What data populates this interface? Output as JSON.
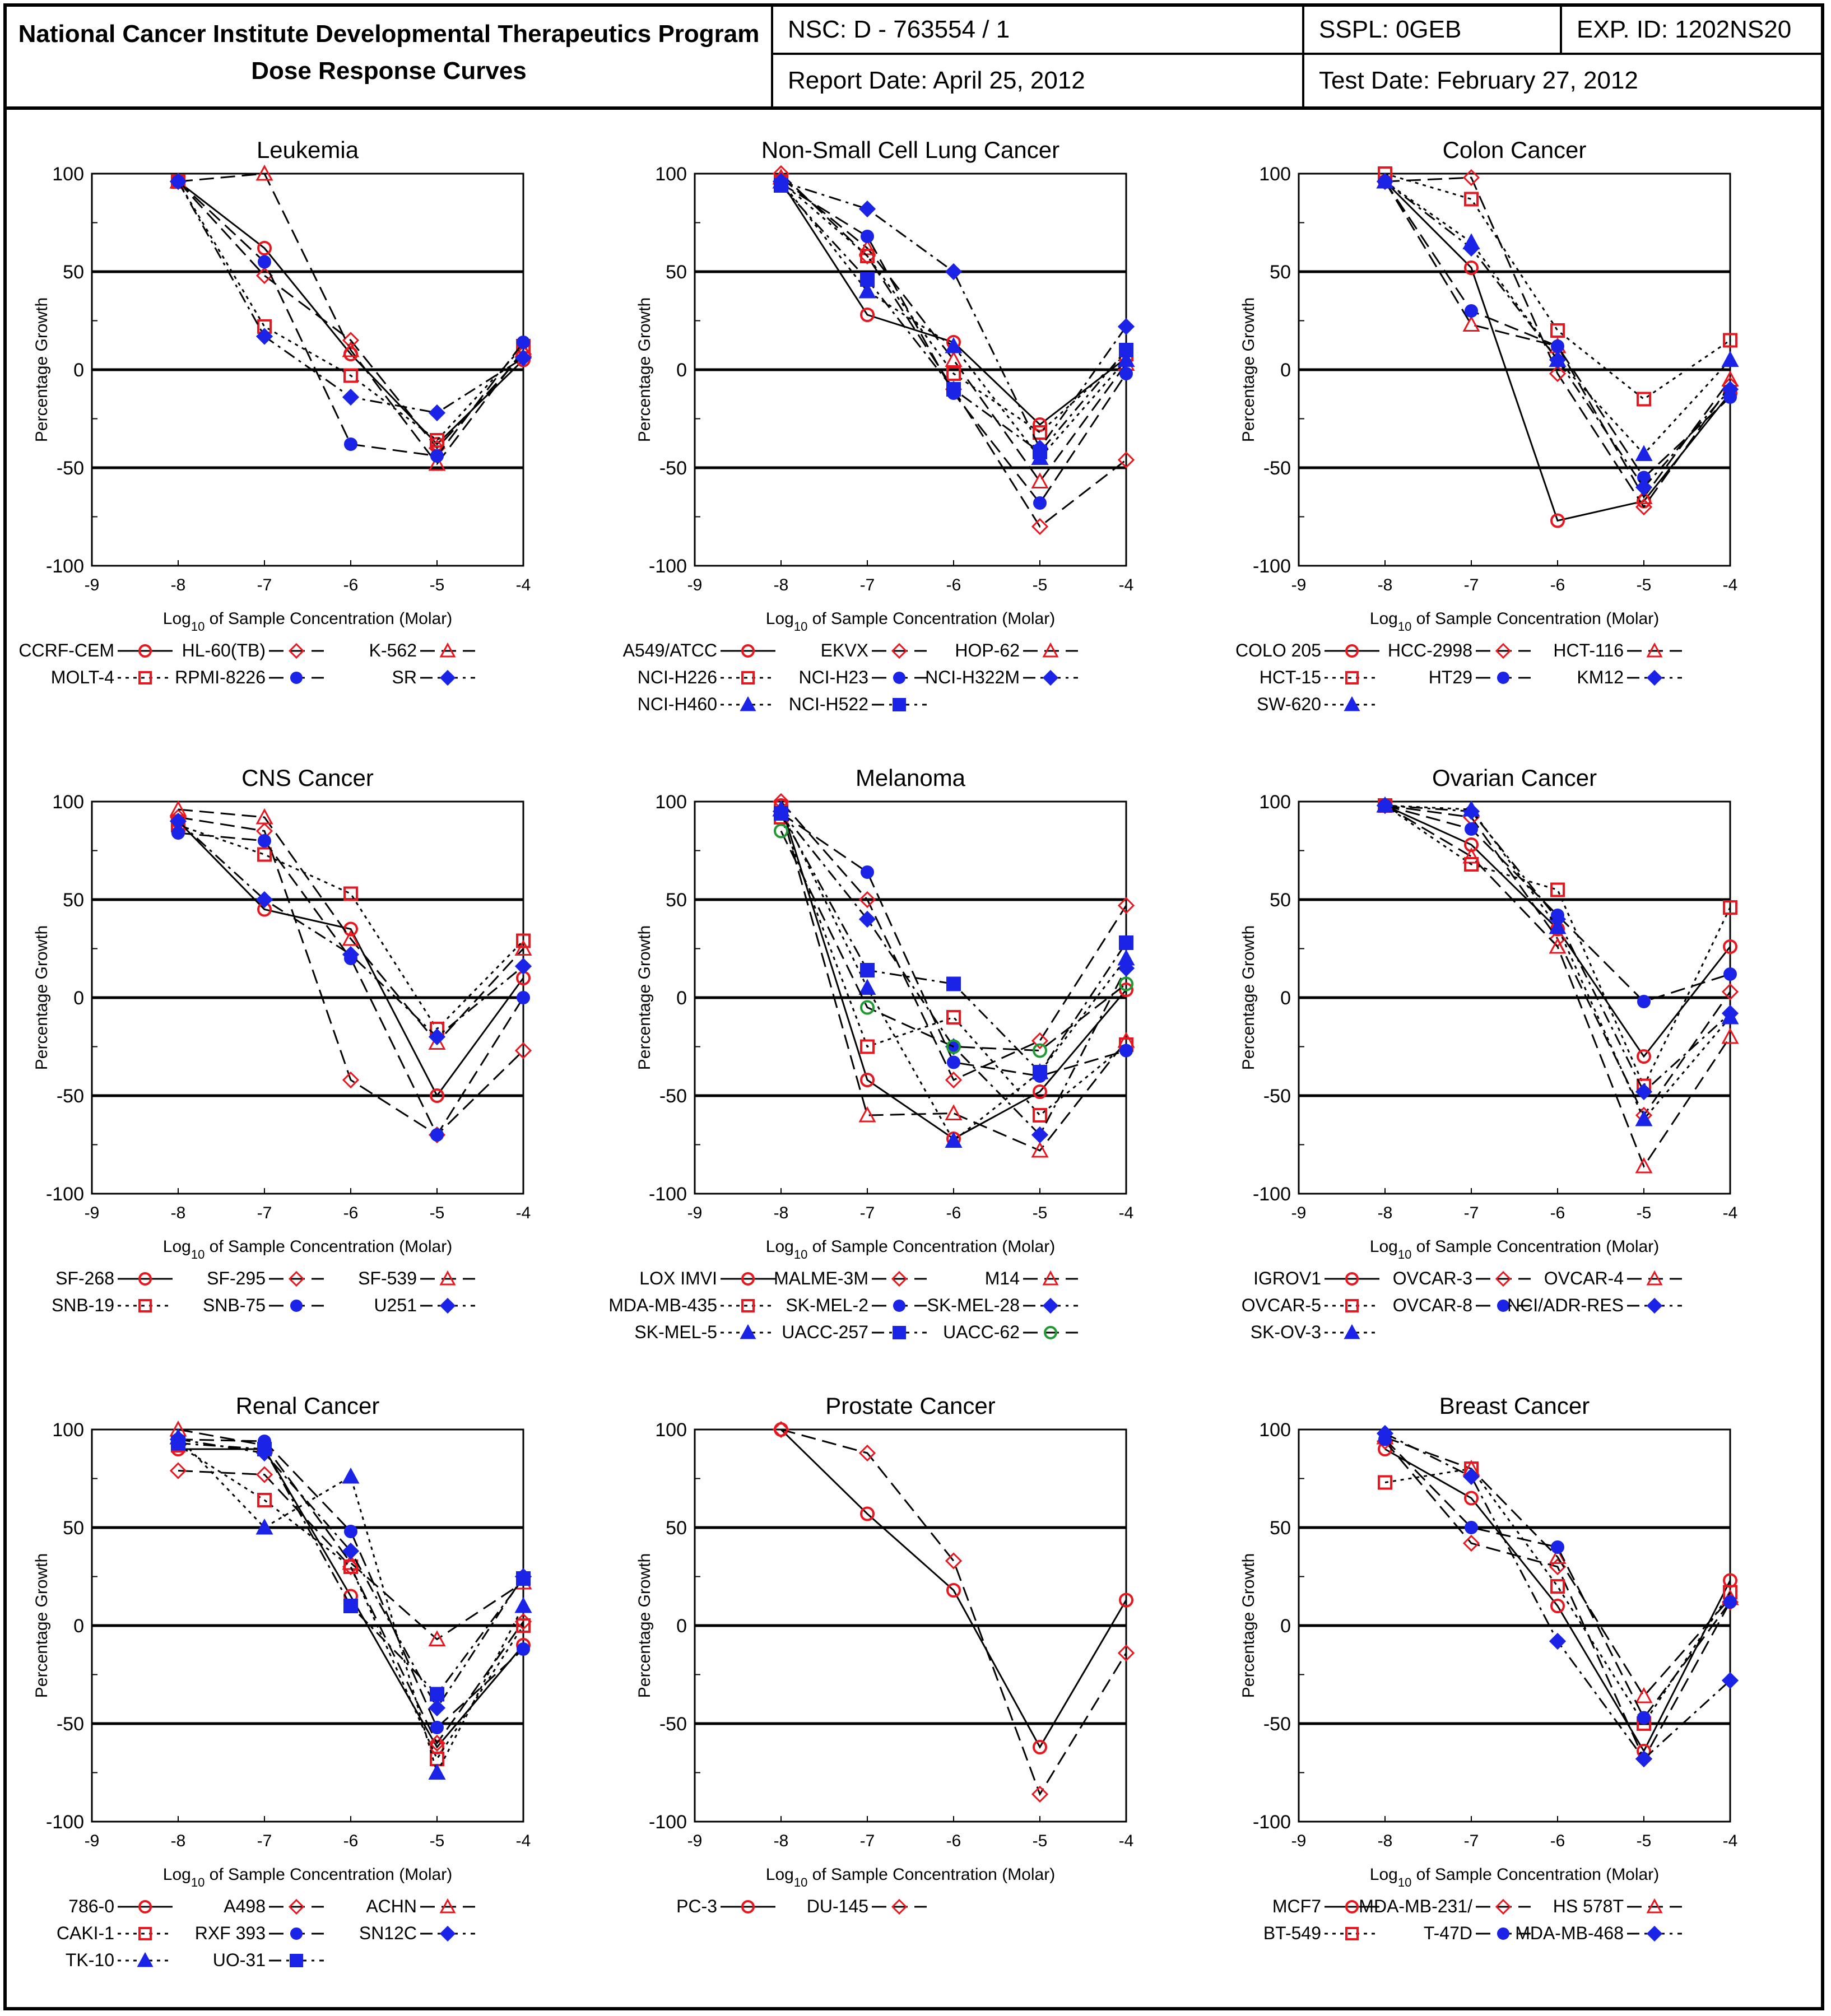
{
  "header": {
    "title_line1": "National Cancer Institute Developmental Therapeutics Program",
    "title_line2": "Dose Response Curves",
    "nsc": "NSC: D - 763554 / 1",
    "sspl": "SSPL: 0GEB",
    "exp_id": "EXP. ID: 1202NS20",
    "report_date": "Report Date: April 25, 2012",
    "test_date": "Test Date: February 27, 2012"
  },
  "axes": {
    "ylabel": "Percentage Growth",
    "xlabel_prefix": "Log",
    "xlabel_sub": "10",
    "xlabel_suffix": " of Sample Concentration (Molar)",
    "xticks": [
      -9,
      -8,
      -7,
      -6,
      -5,
      -4
    ],
    "yticks": [
      -100,
      -50,
      0,
      50,
      100
    ],
    "xlim": [
      -9,
      -4
    ],
    "ylim": [
      -100,
      100
    ]
  },
  "colors": {
    "red": "#e8161e",
    "blue": "#1b24e6",
    "green": "#1f9a33",
    "black": "#000000"
  },
  "chart_data": [
    {
      "type": "line",
      "title": "Leukemia",
      "x": [
        -8,
        -7,
        -6,
        -5,
        -4
      ],
      "series": [
        {
          "name": "CCRF-CEM",
          "marker": "circle",
          "color": "red",
          "dash": "solid",
          "values": [
            96,
            62,
            8,
            -38,
            5
          ]
        },
        {
          "name": "HL-60(TB)",
          "marker": "diamond",
          "color": "red",
          "dash": "dashed",
          "values": [
            96,
            48,
            15,
            -40,
            8
          ]
        },
        {
          "name": "K-562",
          "marker": "triangle",
          "color": "red",
          "dash": "dashed",
          "values": [
            96,
            100,
            10,
            -48,
            10
          ]
        },
        {
          "name": "MOLT-4",
          "marker": "square",
          "color": "red",
          "dash": "dotted",
          "values": [
            96,
            22,
            -3,
            -36,
            12
          ]
        },
        {
          "name": "RPMI-8226",
          "marker": "circle",
          "color": "blue",
          "dash": "dashed",
          "values": [
            96,
            55,
            -38,
            -44,
            14
          ]
        },
        {
          "name": "SR",
          "marker": "diamond",
          "color": "blue",
          "dash": "dashdot",
          "values": [
            96,
            17,
            -14,
            -22,
            6
          ]
        }
      ]
    },
    {
      "type": "line",
      "title": "Non-Small Cell Lung Cancer",
      "x": [
        -8,
        -7,
        -6,
        -5,
        -4
      ],
      "series": [
        {
          "name": "A549/ATCC",
          "marker": "circle",
          "color": "red",
          "dash": "solid",
          "values": [
            96,
            28,
            14,
            -28,
            6
          ]
        },
        {
          "name": "EKVX",
          "marker": "diamond",
          "color": "red",
          "dash": "dashed",
          "values": [
            100,
            58,
            -10,
            -80,
            -46
          ]
        },
        {
          "name": "HOP-62",
          "marker": "triangle",
          "color": "red",
          "dash": "dashed",
          "values": [
            98,
            62,
            5,
            -57,
            3
          ]
        },
        {
          "name": "NCI-H226",
          "marker": "square",
          "color": "red",
          "dash": "dotted",
          "values": [
            96,
            58,
            -2,
            -32,
            8
          ]
        },
        {
          "name": "NCI-H23",
          "marker": "circle",
          "color": "blue",
          "dash": "dashed",
          "values": [
            95,
            68,
            -12,
            -68,
            -2
          ]
        },
        {
          "name": "NCI-H322M",
          "marker": "diamond",
          "color": "blue",
          "dash": "dashdot",
          "values": [
            96,
            82,
            50,
            -40,
            22
          ]
        },
        {
          "name": "NCI-H460",
          "marker": "triangle",
          "color": "blue",
          "dash": "dotted",
          "values": [
            96,
            40,
            12,
            -45,
            5
          ]
        },
        {
          "name": "NCI-H522",
          "marker": "square",
          "color": "blue",
          "dash": "dashdot",
          "values": [
            94,
            46,
            -10,
            -42,
            10
          ]
        }
      ]
    },
    {
      "type": "line",
      "title": "Colon Cancer",
      "x": [
        -8,
        -7,
        -6,
        -5,
        -4
      ],
      "series": [
        {
          "name": "COLO 205",
          "marker": "circle",
          "color": "red",
          "dash": "solid",
          "values": [
            96,
            52,
            -77,
            -67,
            -12
          ]
        },
        {
          "name": "HCC-2998",
          "marker": "diamond",
          "color": "red",
          "dash": "dashed",
          "values": [
            96,
            98,
            -2,
            -70,
            -8
          ]
        },
        {
          "name": "HCT-116",
          "marker": "triangle",
          "color": "red",
          "dash": "dashed",
          "values": [
            96,
            23,
            12,
            -65,
            -5
          ]
        },
        {
          "name": "HCT-15",
          "marker": "square",
          "color": "red",
          "dash": "dotted",
          "values": [
            100,
            87,
            20,
            -15,
            15
          ]
        },
        {
          "name": "HT29",
          "marker": "circle",
          "color": "blue",
          "dash": "dashed",
          "values": [
            96,
            30,
            12,
            -55,
            -14
          ]
        },
        {
          "name": "KM12",
          "marker": "diamond",
          "color": "blue",
          "dash": "dashdot",
          "values": [
            96,
            62,
            5,
            -60,
            -10
          ]
        },
        {
          "name": "SW-620",
          "marker": "triangle",
          "color": "blue",
          "dash": "dotted",
          "values": [
            96,
            65,
            5,
            -43,
            5
          ]
        }
      ]
    },
    {
      "type": "line",
      "title": "CNS Cancer",
      "x": [
        -8,
        -7,
        -6,
        -5,
        -4
      ],
      "series": [
        {
          "name": "SF-268",
          "marker": "circle",
          "color": "red",
          "dash": "solid",
          "values": [
            90,
            45,
            35,
            -50,
            10
          ]
        },
        {
          "name": "SF-295",
          "marker": "diamond",
          "color": "red",
          "dash": "dashed",
          "values": [
            92,
            85,
            -42,
            -70,
            -27
          ]
        },
        {
          "name": "SF-539",
          "marker": "triangle",
          "color": "red",
          "dash": "dashed",
          "values": [
            96,
            92,
            30,
            -23,
            25
          ]
        },
        {
          "name": "SNB-19",
          "marker": "square",
          "color": "red",
          "dash": "dotted",
          "values": [
            88,
            73,
            53,
            -16,
            29
          ]
        },
        {
          "name": "SNB-75",
          "marker": "circle",
          "color": "blue",
          "dash": "dashed",
          "values": [
            84,
            80,
            20,
            -70,
            0
          ]
        },
        {
          "name": "U251",
          "marker": "diamond",
          "color": "blue",
          "dash": "dashdot",
          "values": [
            90,
            50,
            22,
            -20,
            16
          ]
        }
      ]
    },
    {
      "type": "line",
      "title": "Melanoma",
      "x": [
        -8,
        -7,
        -6,
        -5,
        -4
      ],
      "series": [
        {
          "name": "LOX IMVI",
          "marker": "circle",
          "color": "red",
          "dash": "solid",
          "values": [
            98,
            -42,
            -72,
            -48,
            4
          ]
        },
        {
          "name": "MALME-3M",
          "marker": "diamond",
          "color": "red",
          "dash": "dashed",
          "values": [
            100,
            50,
            -42,
            -22,
            47
          ]
        },
        {
          "name": "M14",
          "marker": "triangle",
          "color": "red",
          "dash": "dashed",
          "values": [
            96,
            -60,
            -59,
            -78,
            -22
          ]
        },
        {
          "name": "MDA-MB-435",
          "marker": "square",
          "color": "red",
          "dash": "dotted",
          "values": [
            92,
            -25,
            -10,
            -60,
            -24
          ]
        },
        {
          "name": "SK-MEL-2",
          "marker": "circle",
          "color": "blue",
          "dash": "dashed",
          "values": [
            94,
            64,
            -33,
            -40,
            -27
          ]
        },
        {
          "name": "SK-MEL-28",
          "marker": "diamond",
          "color": "blue",
          "dash": "dashdot",
          "values": [
            95,
            40,
            -25,
            -70,
            15
          ]
        },
        {
          "name": "SK-MEL-5",
          "marker": "triangle",
          "color": "blue",
          "dash": "dotted",
          "values": [
            96,
            5,
            -73,
            -38,
            20
          ]
        },
        {
          "name": "UACC-257",
          "marker": "square",
          "color": "blue",
          "dash": "dashdot",
          "values": [
            94,
            14,
            7,
            -38,
            28
          ]
        },
        {
          "name": "UACC-62",
          "marker": "circle-open",
          "color": "green",
          "dash": "dashed",
          "values": [
            85,
            -5,
            -25,
            -27,
            7
          ]
        }
      ]
    },
    {
      "type": "line",
      "title": "Ovarian Cancer",
      "x": [
        -8,
        -7,
        -6,
        -5,
        -4
      ],
      "series": [
        {
          "name": "IGROV1",
          "marker": "circle",
          "color": "red",
          "dash": "solid",
          "values": [
            98,
            78,
            35,
            -30,
            26
          ]
        },
        {
          "name": "OVCAR-3",
          "marker": "diamond",
          "color": "red",
          "dash": "dashed",
          "values": [
            98,
            92,
            30,
            -60,
            3
          ]
        },
        {
          "name": "OVCAR-4",
          "marker": "triangle",
          "color": "red",
          "dash": "dashed",
          "values": [
            98,
            72,
            26,
            -86,
            -20
          ]
        },
        {
          "name": "OVCAR-5",
          "marker": "square",
          "color": "red",
          "dash": "dotted",
          "values": [
            98,
            68,
            55,
            -45,
            46
          ]
        },
        {
          "name": "OVCAR-8",
          "marker": "circle",
          "color": "blue",
          "dash": "dashed",
          "values": [
            98,
            86,
            42,
            -2,
            12
          ]
        },
        {
          "name": "NCI/ADR-RES",
          "marker": "diamond",
          "color": "blue",
          "dash": "dashdot",
          "values": [
            98,
            95,
            40,
            -48,
            -8
          ]
        },
        {
          "name": "SK-OV-3",
          "marker": "triangle",
          "color": "blue",
          "dash": "dotted",
          "values": [
            98,
            96,
            36,
            -62,
            -10
          ]
        }
      ]
    },
    {
      "type": "line",
      "title": "Renal Cancer",
      "x": [
        -8,
        -7,
        -6,
        -5,
        -4
      ],
      "series": [
        {
          "name": "786-0",
          "marker": "circle",
          "color": "red",
          "dash": "solid",
          "values": [
            90,
            90,
            15,
            -62,
            -10
          ]
        },
        {
          "name": "A498",
          "marker": "diamond",
          "color": "red",
          "dash": "dashed",
          "values": [
            79,
            77,
            30,
            -60,
            2
          ]
        },
        {
          "name": "ACHN",
          "marker": "triangle",
          "color": "red",
          "dash": "dashed",
          "values": [
            100,
            92,
            32,
            -7,
            22
          ]
        },
        {
          "name": "CAKI-1",
          "marker": "square",
          "color": "red",
          "dash": "dotted",
          "values": [
            92,
            64,
            30,
            -68,
            0
          ]
        },
        {
          "name": "RXF 393",
          "marker": "circle",
          "color": "blue",
          "dash": "dashed",
          "values": [
            95,
            94,
            48,
            -52,
            -12
          ]
        },
        {
          "name": "SN12C",
          "marker": "diamond",
          "color": "blue",
          "dash": "dashdot",
          "values": [
            95,
            88,
            38,
            -42,
            25
          ]
        },
        {
          "name": "TK-10",
          "marker": "triangle",
          "color": "blue",
          "dash": "dotted",
          "values": [
            96,
            50,
            76,
            -75,
            10
          ]
        },
        {
          "name": "UO-31",
          "marker": "square",
          "color": "blue",
          "dash": "dashdot",
          "values": [
            93,
            90,
            10,
            -35,
            24
          ]
        }
      ]
    },
    {
      "type": "line",
      "title": "Prostate Cancer",
      "x": [
        -8,
        -7,
        -6,
        -5,
        -4
      ],
      "series": [
        {
          "name": "PC-3",
          "marker": "circle",
          "color": "red",
          "dash": "solid",
          "values": [
            100,
            57,
            18,
            -62,
            13
          ]
        },
        {
          "name": "DU-145",
          "marker": "diamond",
          "color": "red",
          "dash": "dashed",
          "values": [
            100,
            88,
            33,
            -86,
            -14
          ]
        }
      ]
    },
    {
      "type": "line",
      "title": "Breast Cancer",
      "x": [
        -8,
        -7,
        -6,
        -5,
        -4
      ],
      "series": [
        {
          "name": "MCF7",
          "marker": "circle",
          "color": "red",
          "dash": "solid",
          "values": [
            90,
            65,
            10,
            -64,
            23
          ]
        },
        {
          "name": "MDA-MB-231/",
          "marker": "diamond",
          "color": "red",
          "dash": "dashed",
          "values": [
            94,
            42,
            30,
            -68,
            12
          ]
        },
        {
          "name": "HS 578T",
          "marker": "triangle",
          "color": "red",
          "dash": "dashed",
          "values": [
            96,
            80,
            35,
            -36,
            14
          ]
        },
        {
          "name": "BT-549",
          "marker": "square",
          "color": "red",
          "dash": "dotted",
          "values": [
            73,
            80,
            20,
            -50,
            17
          ]
        },
        {
          "name": "T-47D",
          "marker": "circle",
          "color": "blue",
          "dash": "dashed",
          "values": [
            95,
            50,
            40,
            -47,
            12
          ]
        },
        {
          "name": "MDA-MB-468",
          "marker": "diamond",
          "color": "blue",
          "dash": "dashdot",
          "values": [
            98,
            76,
            -8,
            -68,
            -28
          ]
        }
      ]
    }
  ]
}
